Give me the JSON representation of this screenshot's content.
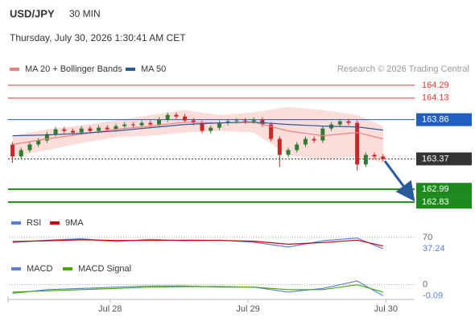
{
  "header": {
    "symbol": "USD/JPY",
    "timeframe": "30 MIN",
    "datetime": "Thursday, July 30, 2026 1:30:41 AM CET",
    "source": "Research © 2026 Trading Central"
  },
  "chart_data": [
    {
      "type": "candlestick",
      "xlim": [
        -17.5,
        53
      ],
      "ylim": [
        162.72,
        164.4
      ],
      "up_color": "#2e7d32",
      "down_color": "#c62828",
      "candles": {
        "x": [
          -17,
          -15.5,
          -14,
          -12.5,
          -11,
          -9.5,
          -8,
          -6.5,
          -5,
          -3.5,
          -2,
          -0.5,
          1,
          2.5,
          4,
          5.5,
          7,
          8.5,
          10,
          11.5,
          13,
          14.5,
          16,
          17.5,
          19,
          20.5,
          22,
          23.5,
          25,
          26.5,
          28,
          29.5,
          31,
          32.5,
          34,
          35.5,
          37,
          38.5,
          40,
          41.5,
          43,
          44.5,
          46,
          47.5
        ],
        "open": [
          163.55,
          163.4,
          163.48,
          163.55,
          163.6,
          163.68,
          163.74,
          163.72,
          163.7,
          163.75,
          163.72,
          163.76,
          163.74,
          163.78,
          163.8,
          163.79,
          163.82,
          163.8,
          163.86,
          163.92,
          163.9,
          163.85,
          163.82,
          163.72,
          163.76,
          163.82,
          163.84,
          163.85,
          163.84,
          163.86,
          163.8,
          163.62,
          163.42,
          163.48,
          163.55,
          163.62,
          163.6,
          163.75,
          163.8,
          163.84,
          163.82,
          163.3,
          163.42,
          163.4
        ],
        "high": [
          163.58,
          163.51,
          163.58,
          163.63,
          163.71,
          163.77,
          163.77,
          163.75,
          163.78,
          163.78,
          163.79,
          163.79,
          163.81,
          163.83,
          163.83,
          163.85,
          163.85,
          163.89,
          163.95,
          163.95,
          163.93,
          163.88,
          163.85,
          163.79,
          163.85,
          163.87,
          163.88,
          163.88,
          163.89,
          163.89,
          163.83,
          163.65,
          163.51,
          163.58,
          163.65,
          163.65,
          163.78,
          163.83,
          163.87,
          163.87,
          163.85,
          163.45,
          163.45,
          163.43
        ],
        "low": [
          163.32,
          163.37,
          163.45,
          163.52,
          163.57,
          163.65,
          163.69,
          163.67,
          163.67,
          163.69,
          163.69,
          163.71,
          163.71,
          163.75,
          163.76,
          163.76,
          163.77,
          163.77,
          163.83,
          163.87,
          163.82,
          163.79,
          163.69,
          163.69,
          163.73,
          163.79,
          163.81,
          163.81,
          163.81,
          163.77,
          163.59,
          163.27,
          163.39,
          163.45,
          163.52,
          163.57,
          163.57,
          163.72,
          163.77,
          163.79,
          163.22,
          163.27,
          163.37,
          163.34
        ],
        "close": [
          163.4,
          163.48,
          163.55,
          163.6,
          163.68,
          163.74,
          163.72,
          163.7,
          163.75,
          163.72,
          163.76,
          163.74,
          163.78,
          163.8,
          163.79,
          163.82,
          163.8,
          163.86,
          163.92,
          163.9,
          163.85,
          163.82,
          163.72,
          163.76,
          163.82,
          163.84,
          163.85,
          163.84,
          163.86,
          163.8,
          163.62,
          163.42,
          163.48,
          163.55,
          163.62,
          163.6,
          163.75,
          163.8,
          163.84,
          163.82,
          163.3,
          163.42,
          163.4,
          163.37
        ]
      },
      "x": [
        -17,
        -11,
        -5,
        1,
        7,
        13,
        19,
        25,
        31,
        37,
        43,
        47.5
      ],
      "series": [
        {
          "name": "MA 20 + Bollinger Bands",
          "color": "#f08080",
          "values": [
            163.55,
            163.62,
            163.68,
            163.74,
            163.78,
            163.83,
            163.82,
            163.83,
            163.72,
            163.66,
            163.7,
            163.62
          ]
        },
        {
          "name": "MA 50",
          "color": "#2a5a9a",
          "values": [
            163.66,
            163.67,
            163.69,
            163.72,
            163.76,
            163.8,
            163.82,
            163.83,
            163.8,
            163.78,
            163.77,
            163.73
          ]
        }
      ],
      "bands": {
        "color": "#fbd5d0",
        "upper": [
          163.66,
          163.74,
          163.79,
          163.85,
          163.92,
          163.98,
          163.92,
          163.95,
          164.02,
          163.98,
          163.92,
          163.78
        ],
        "lower": [
          163.4,
          163.48,
          163.57,
          163.64,
          163.66,
          163.7,
          163.72,
          163.7,
          163.42,
          163.36,
          163.4,
          163.32
        ]
      },
      "levels": [
        {
          "value": 164.29,
          "color": "#e53935",
          "width": 1,
          "box": false,
          "dash": false
        },
        {
          "value": 164.13,
          "color": "#e53935",
          "width": 1,
          "box": false,
          "dash": false
        },
        {
          "value": 163.86,
          "color": "#1f5fbf",
          "width": 1,
          "box": true,
          "dash": false
        },
        {
          "value": 163.37,
          "color": "#333333",
          "width": 1,
          "box": true,
          "dash": true
        },
        {
          "value": 162.99,
          "color": "#1e8a1e",
          "width": 2,
          "box": true,
          "dash": false
        },
        {
          "value": 162.83,
          "color": "#1e8a1e",
          "width": 2,
          "box": true,
          "dash": false
        }
      ]
    },
    {
      "type": "line",
      "xlim": [
        -17.5,
        53
      ],
      "ylim": [
        16,
        86
      ],
      "yticks": [
        70
      ],
      "last_label": true,
      "x": [
        -17,
        -11,
        -5,
        1,
        7,
        13,
        19,
        25,
        31,
        37,
        43,
        47.5
      ],
      "series": [
        {
          "name": "RSI",
          "color": "#5b7fd6",
          "values": [
            55,
            62,
            66,
            58,
            64,
            60,
            62,
            56,
            42,
            60,
            68,
            37.24
          ]
        },
        {
          "name": "9MA",
          "color": "#cc0000",
          "values": [
            58,
            60,
            63,
            61,
            61,
            62,
            61,
            59,
            50,
            55,
            62,
            45
          ]
        }
      ]
    },
    {
      "type": "line",
      "xlim": [
        -17.5,
        53
      ],
      "ylim": [
        -0.12,
        0.07
      ],
      "yticks": [
        0
      ],
      "last_label": true,
      "x": [
        -17,
        -11,
        -5,
        1,
        7,
        13,
        19,
        25,
        31,
        37,
        43,
        47.5
      ],
      "xticks": [
        {
          "value": 0,
          "label": "Jul 28"
        },
        {
          "value": 24,
          "label": "Jul 29"
        },
        {
          "value": 48,
          "label": "Jul 30"
        }
      ],
      "series": [
        {
          "name": "MACD",
          "color": "#5b7fd6",
          "values": [
            -0.07,
            -0.04,
            -0.03,
            -0.02,
            -0.01,
            -0.01,
            -0.02,
            -0.02,
            -0.06,
            -0.03,
            0.03,
            -0.09
          ]
        },
        {
          "name": "MACD Signal",
          "color": "#44aa00",
          "values": [
            -0.06,
            -0.05,
            -0.04,
            -0.03,
            -0.02,
            -0.015,
            -0.015,
            -0.02,
            -0.04,
            -0.04,
            0,
            -0.06
          ]
        }
      ]
    }
  ]
}
